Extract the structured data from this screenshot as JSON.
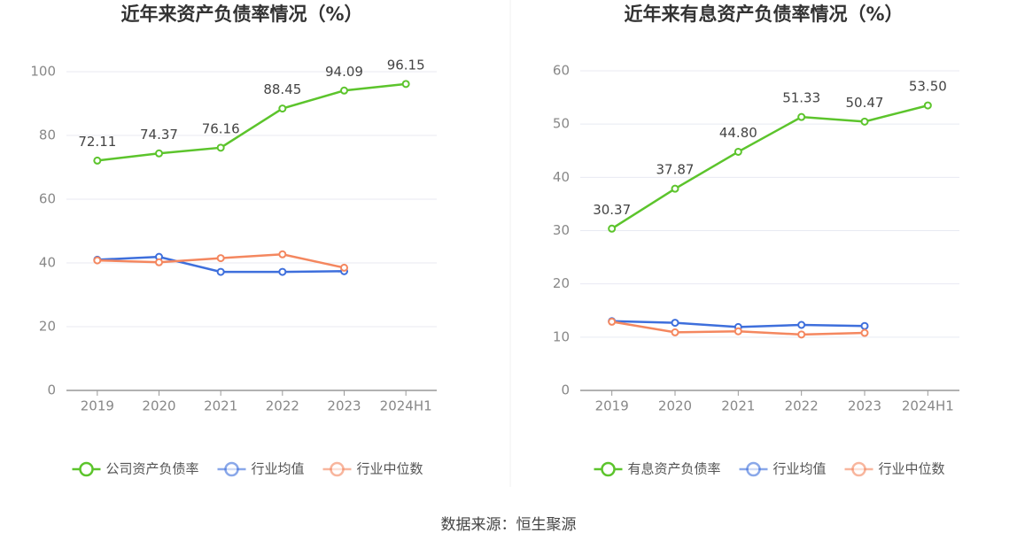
{
  "chart_data": [
    {
      "type": "line",
      "title": "近年来资产负债率情况（%）",
      "categories": [
        "2019",
        "2020",
        "2021",
        "2022",
        "2023",
        "2024H1"
      ],
      "ylim": [
        0,
        100
      ],
      "yticks": [
        0,
        20,
        40,
        60,
        80,
        100
      ],
      "grid": true,
      "legend": "bottom",
      "series": [
        {
          "name": "公司资产负债率",
          "color": "#5cc42c",
          "values": [
            72.11,
            74.37,
            76.16,
            88.45,
            94.09,
            96.15
          ],
          "value_labels": [
            "72.11",
            "74.37",
            "76.16",
            "88.45",
            "94.09",
            "96.15"
          ]
        },
        {
          "name": "行业均值",
          "color": "#3e6fdc",
          "values": [
            41.0,
            41.9,
            37.2,
            37.2,
            37.4,
            null
          ]
        },
        {
          "name": "行业中位数",
          "color": "#f4875f",
          "values": [
            40.8,
            40.2,
            41.5,
            42.7,
            38.5,
            null
          ]
        }
      ]
    },
    {
      "type": "line",
      "title": "近年来有息资产负债率情况（%）",
      "categories": [
        "2019",
        "2020",
        "2021",
        "2022",
        "2023",
        "2024H1"
      ],
      "ylim": [
        0,
        60
      ],
      "yticks": [
        0,
        10,
        20,
        30,
        40,
        50,
        60
      ],
      "grid": true,
      "legend": "bottom",
      "series": [
        {
          "name": "有息资产负债率",
          "color": "#5cc42c",
          "values": [
            30.37,
            37.87,
            44.8,
            51.33,
            50.47,
            53.5
          ],
          "value_labels": [
            "30.37",
            "37.87",
            "44.80",
            "51.33",
            "50.47",
            "53.50"
          ]
        },
        {
          "name": "行业均值",
          "color": "#3e6fdc",
          "values": [
            13.0,
            12.7,
            11.9,
            12.3,
            12.1,
            null
          ]
        },
        {
          "name": "行业中位数",
          "color": "#f4875f",
          "values": [
            12.9,
            10.9,
            11.1,
            10.5,
            10.8,
            null
          ]
        }
      ]
    }
  ],
  "source": "数据来源：恒生聚源"
}
